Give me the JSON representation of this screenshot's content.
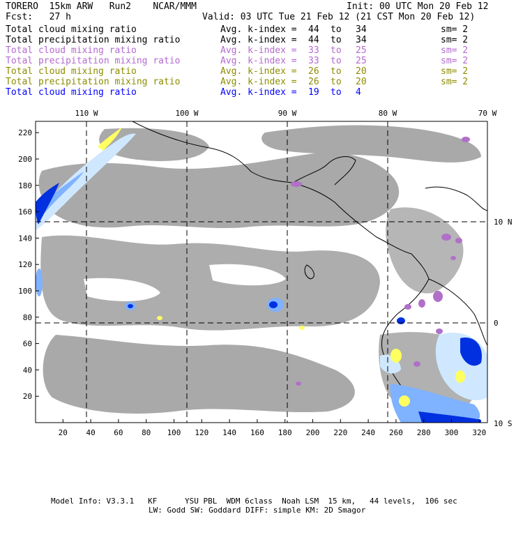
{
  "header": {
    "model": "TORERO  15km ARW   Run2    NCAR/MMM",
    "init": "Init: 00 UTC Mon 20 Feb 12",
    "fcst": "Fcst:   27 h",
    "valid": "Valid: 03 UTC Tue 21 Feb 12 (21 CST Mon 20 Feb 12)"
  },
  "legend": [
    {
      "field": "Total cloud mixing ratio",
      "avg": "Avg. k-index =",
      "from": "44",
      "to": "to",
      "end": "34",
      "sm": "sm= 2",
      "color": "#000000"
    },
    {
      "field": "Total precipitation mixing ratio",
      "avg": "Avg. k-index =",
      "from": "44",
      "to": "to",
      "end": "34",
      "sm": "sm= 2",
      "color": "#000000"
    },
    {
      "field": "Total cloud mixing ratio",
      "avg": "Avg. k-index =",
      "from": "33",
      "to": "to",
      "end": "25",
      "sm": "sm= 2",
      "color": "#b46ad0"
    },
    {
      "field": "Total precipitation mixing ratio",
      "avg": "Avg. k-index =",
      "from": "33",
      "to": "to",
      "end": "25",
      "sm": "sm= 2",
      "color": "#b46ad0"
    },
    {
      "field": "Total cloud mixing ratio",
      "avg": "Avg. k-index =",
      "from": "26",
      "to": "to",
      "end": "20",
      "sm": "sm= 2",
      "color": "#8c8c00"
    },
    {
      "field": "Total precipitation mixing ratio",
      "avg": "Avg. k-index =",
      "from": "26",
      "to": "to",
      "end": "20",
      "sm": "sm= 2",
      "color": "#8c8c00"
    },
    {
      "field": "Total cloud mixing ratio",
      "avg": "Avg. k-index =",
      "from": "19",
      "to": "to",
      "end": "4",
      "sm": "",
      "color": "#0000ff"
    }
  ],
  "map": {
    "lon_labels": [
      "110 W",
      "100 W",
      "90 W",
      "80 W",
      "70 W"
    ],
    "lat_labels": [
      "10 N",
      "0",
      "10 S"
    ],
    "x_ticks": [
      "20",
      "40",
      "60",
      "80",
      "100",
      "120",
      "140",
      "160",
      "180",
      "200",
      "220",
      "240",
      "260",
      "280",
      "300",
      "320"
    ],
    "y_ticks": [
      "20",
      "40",
      "60",
      "80",
      "100",
      "120",
      "140",
      "160",
      "180",
      "200",
      "220"
    ],
    "colors": {
      "cloud_gray": "#a9a9a9",
      "light_blue": "#cfe8ff",
      "mid_blue": "#7fb2ff",
      "deep_blue": "#0030e0",
      "yellow": "#ffff60",
      "purple": "#b070c8"
    }
  },
  "footer": {
    "line1": "Model Info: V3.3.1   KF      YSU PBL  WDM 6class  Noah LSM  15 km,   44 levels,  106 sec",
    "line2": "LW: Godd SW: Goddard DIFF: simple KM: 2D Smagor"
  }
}
